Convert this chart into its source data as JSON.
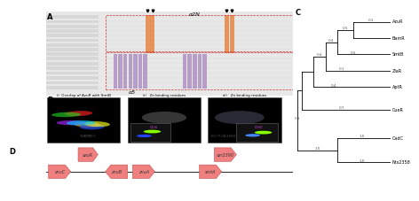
{
  "bg_color": "#ffffff",
  "tree_leaves": [
    "AzuR",
    "BamR",
    "SmtB",
    "ZiaR",
    "AptR",
    "CueR",
    "CadC",
    "Nts2358"
  ],
  "panel_titles_b": [
    "i)  Overlap of AzuR with SmtB",
    "ii)   Zn binding residues",
    "iii)   Zn binding residues"
  ],
  "gene_pink": "#f08080",
  "gene_edge": "#c05050",
  "alignment_bg": "#e0e0e0",
  "orange_col": "#e87020",
  "purple_col": "#8855aa"
}
